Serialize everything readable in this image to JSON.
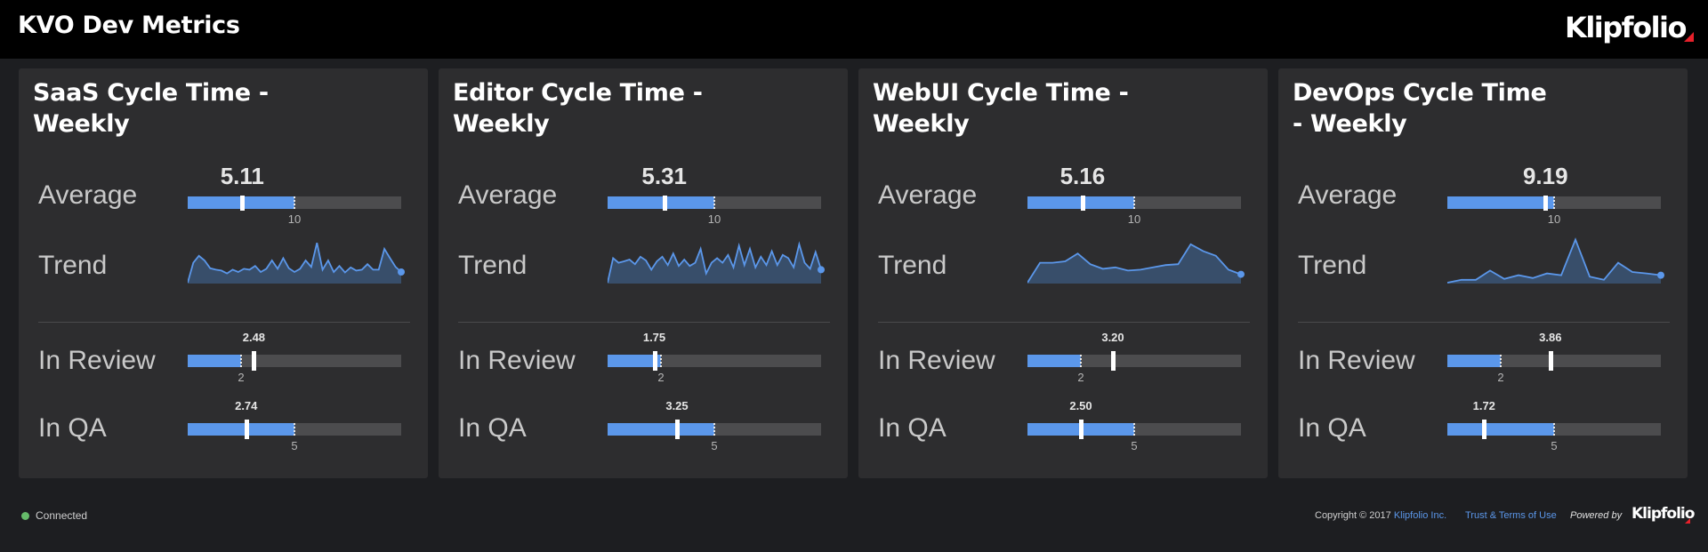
{
  "header": {
    "title": "KVO Dev Metrics",
    "brand": "Klipfolio"
  },
  "labels": {
    "average": "Average",
    "trend": "Trend",
    "in_review": "In Review",
    "in_qa": "In QA"
  },
  "colors": {
    "bar": "#5b97ea",
    "track": "#4c4c4e",
    "spark_fill": "#384e6a",
    "spark_line": "#5b97ea"
  },
  "panels": [
    {
      "title": "SaaS Cycle Time - Weekly",
      "average": {
        "value": "5.11",
        "value_num": 5.11,
        "target_label": "10",
        "target_num": 10,
        "max": 20
      },
      "trend": [
        0.02,
        0.45,
        0.6,
        0.5,
        0.33,
        0.3,
        0.28,
        0.22,
        0.3,
        0.25,
        0.32,
        0.3,
        0.38,
        0.25,
        0.32,
        0.5,
        0.32,
        0.55,
        0.33,
        0.25,
        0.32,
        0.5,
        0.36,
        0.88,
        0.3,
        0.5,
        0.25,
        0.38,
        0.24,
        0.35,
        0.28,
        0.3,
        0.42,
        0.3,
        0.3,
        0.75,
        0.55,
        0.36,
        0.25
      ],
      "in_review": {
        "value": "2.48",
        "value_num": 2.48,
        "target_label": "2",
        "target_num": 2,
        "max": 8
      },
      "in_qa": {
        "value": "2.74",
        "value_num": 2.74,
        "target_label": "5",
        "target_num": 5,
        "max": 10
      }
    },
    {
      "title": "Editor Cycle Time - Weekly",
      "average": {
        "value": "5.31",
        "value_num": 5.31,
        "target_label": "10",
        "target_num": 10,
        "max": 20
      },
      "trend": [
        0.02,
        0.55,
        0.45,
        0.48,
        0.52,
        0.42,
        0.58,
        0.5,
        0.3,
        0.48,
        0.58,
        0.4,
        0.65,
        0.38,
        0.52,
        0.38,
        0.45,
        0.75,
        0.22,
        0.45,
        0.55,
        0.45,
        0.62,
        0.35,
        0.82,
        0.4,
        0.75,
        0.35,
        0.58,
        0.4,
        0.7,
        0.4,
        0.62,
        0.55,
        0.35,
        0.85,
        0.45,
        0.32,
        0.68,
        0.3
      ],
      "in_review": {
        "value": "1.75",
        "value_num": 1.75,
        "target_label": "2",
        "target_num": 2,
        "max": 8
      },
      "in_qa": {
        "value": "3.25",
        "value_num": 3.25,
        "target_label": "5",
        "target_num": 5,
        "max": 10
      }
    },
    {
      "title": "WebUI Cycle Time - Weekly",
      "average": {
        "value": "5.16",
        "value_num": 5.16,
        "target_label": "10",
        "target_num": 10,
        "max": 20
      },
      "trend": [
        0.02,
        0.45,
        0.45,
        0.48,
        0.65,
        0.42,
        0.32,
        0.35,
        0.28,
        0.3,
        0.35,
        0.4,
        0.42,
        0.85,
        0.7,
        0.6,
        0.3,
        0.2
      ],
      "in_review": {
        "value": "3.20",
        "value_num": 3.2,
        "target_label": "2",
        "target_num": 2,
        "max": 8
      },
      "in_qa": {
        "value": "2.50",
        "value_num": 2.5,
        "target_label": "5",
        "target_num": 5,
        "max": 10
      }
    },
    {
      "title": "DevOps Cycle Time - Weekly",
      "average": {
        "value": "9.19",
        "value_num": 9.19,
        "target_label": "10",
        "target_num": 10,
        "max": 20
      },
      "trend": [
        0.02,
        0.08,
        0.08,
        0.28,
        0.1,
        0.18,
        0.12,
        0.22,
        0.18,
        0.95,
        0.15,
        0.08,
        0.45,
        0.25,
        0.22,
        0.18
      ],
      "in_review": {
        "value": "3.86",
        "value_num": 3.86,
        "target_label": "2",
        "target_num": 2,
        "max": 8
      },
      "in_qa": {
        "value": "1.72",
        "value_num": 1.72,
        "target_label": "5",
        "target_num": 5,
        "max": 10
      }
    }
  ],
  "footer": {
    "status": "Connected",
    "copyright": "Copyright © 2017",
    "company": "Klipfolio Inc.",
    "terms": "Trust & Terms of Use",
    "powered_by": "Powered by",
    "brand": "Klipfolio"
  }
}
